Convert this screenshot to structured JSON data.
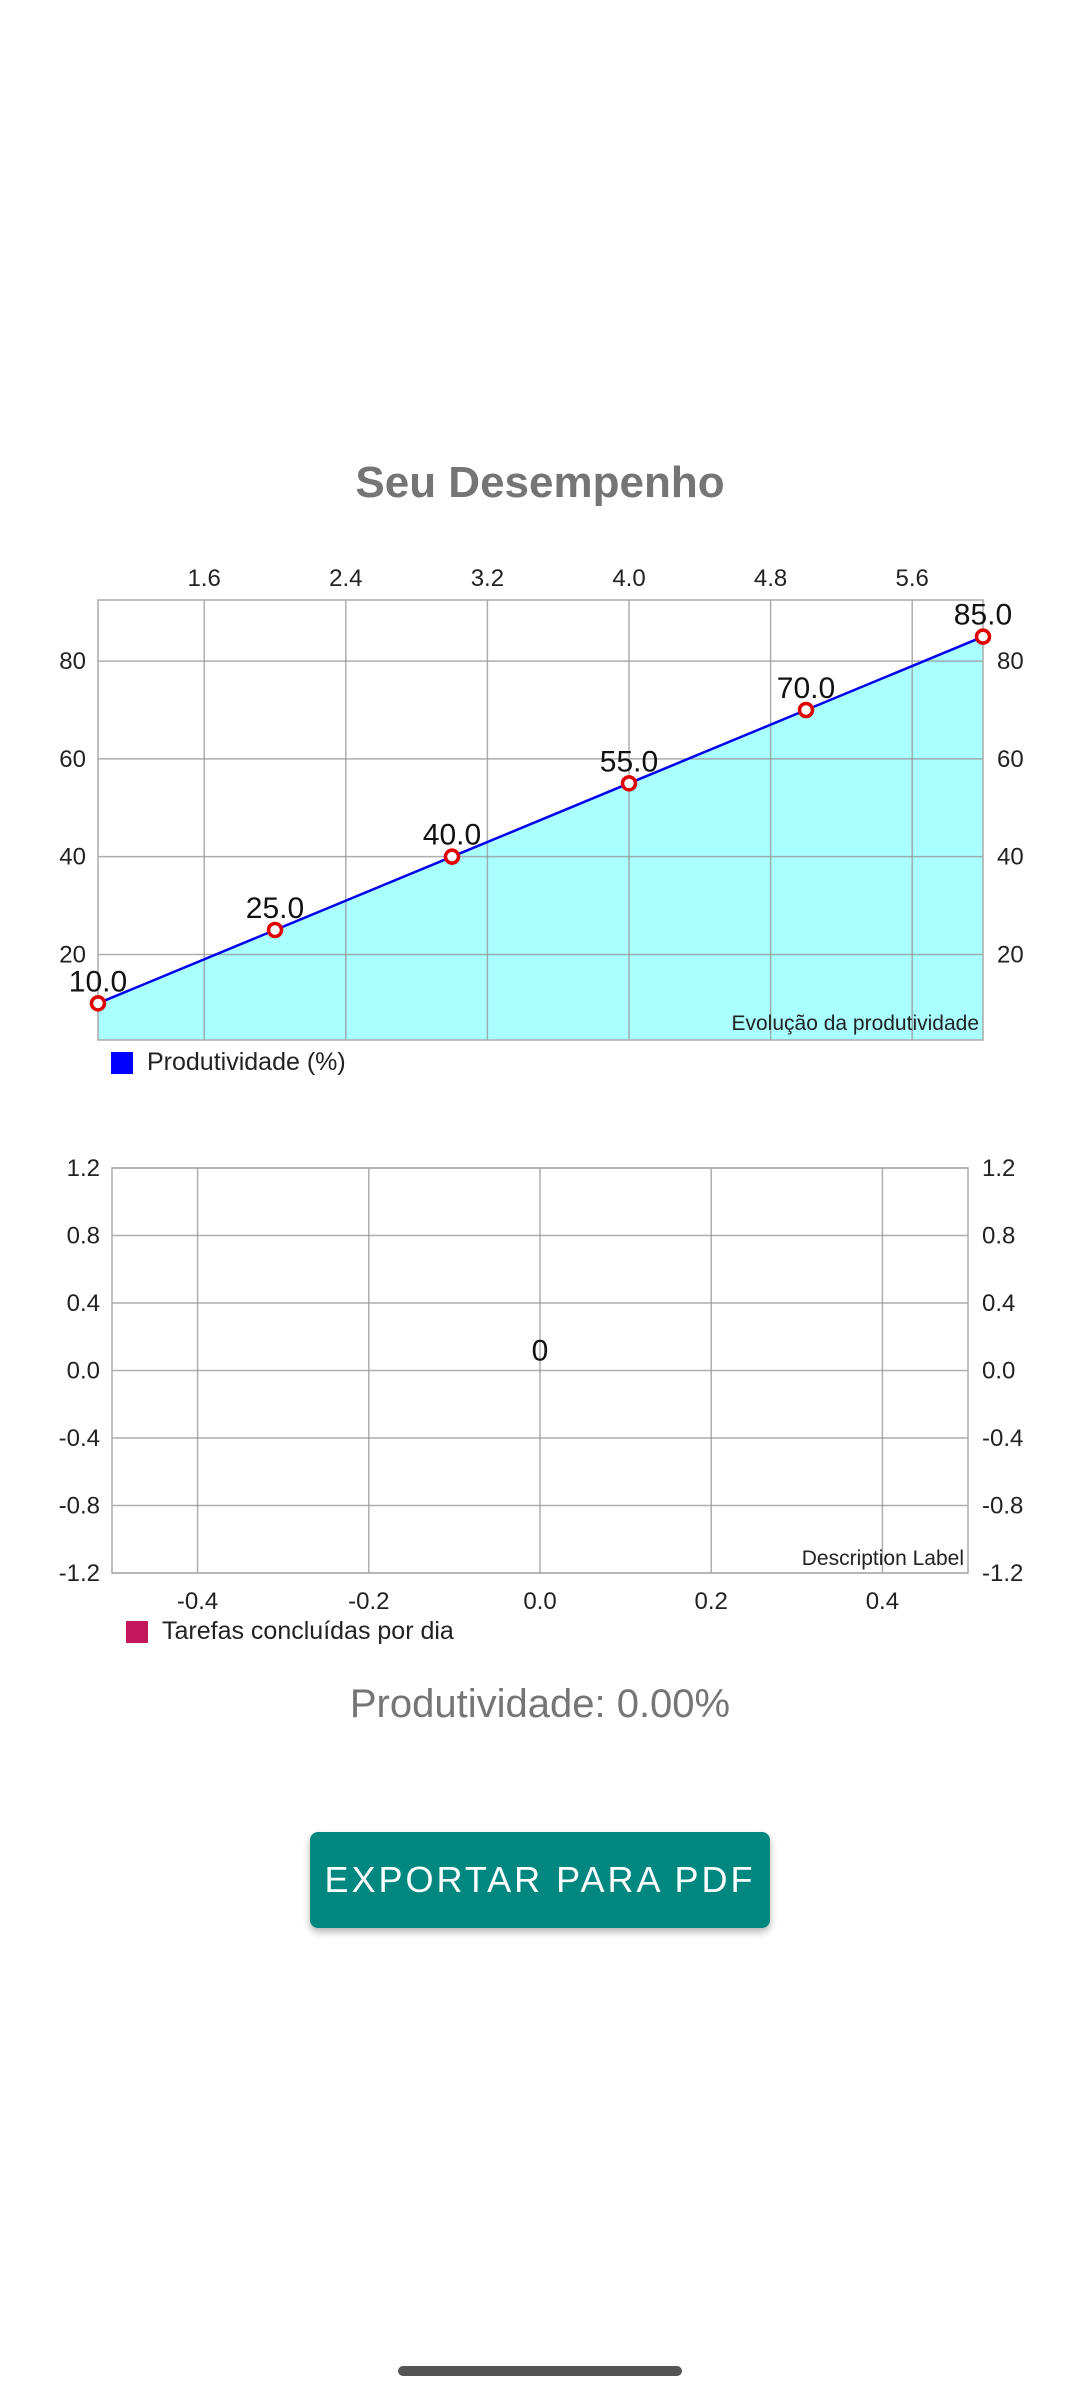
{
  "title": "Seu Desempenho",
  "chart_data": [
    {
      "type": "area",
      "description": "Evolução da produtividade",
      "x": [
        1,
        2,
        3,
        4,
        5,
        6
      ],
      "x_ticks": [
        "1.6",
        "2.4",
        "3.2",
        "4.0",
        "4.8",
        "5.6"
      ],
      "x_tick_values": [
        1.6,
        2.4,
        3.2,
        4.0,
        4.8,
        5.6
      ],
      "xlim": [
        1,
        6
      ],
      "y_ticks": [
        "20",
        "40",
        "60",
        "80"
      ],
      "y_tick_values": [
        20,
        40,
        60,
        80
      ],
      "ylim": [
        2.5,
        92.5
      ],
      "series": [
        {
          "name": "Produtividade (%)",
          "values": [
            10,
            25,
            40,
            55,
            70,
            85
          ],
          "labels": [
            "10.0",
            "25.0",
            "40.0",
            "55.0",
            "70.0",
            "85.0"
          ],
          "line_color": "#0000ee",
          "fill_color": "#aaffff",
          "point_color": "#e00000",
          "legend_color": "#0000ff"
        }
      ],
      "grid": true,
      "legend_position": "bottom-left"
    },
    {
      "type": "bar",
      "description": "Description Label",
      "x_ticks": [
        "-0.4",
        "-0.2",
        "0.0",
        "0.2",
        "0.4"
      ],
      "x_tick_values": [
        -0.4,
        -0.2,
        0.0,
        0.2,
        0.4
      ],
      "xlim": [
        -0.5,
        0.5
      ],
      "y_ticks": [
        "1.2",
        "0.8",
        "0.4",
        "0.0",
        "-0.4",
        "-0.8",
        "-1.2"
      ],
      "y_tick_values": [
        1.2,
        0.8,
        0.4,
        0.0,
        -0.4,
        -0.8,
        -1.2
      ],
      "ylim": [
        -1.2,
        1.2
      ],
      "series": [
        {
          "name": "Tarefas concluídas por dia",
          "values": [
            0
          ],
          "labels": [
            "0"
          ],
          "color": "#c2185b"
        }
      ],
      "grid": true,
      "legend_position": "bottom-left"
    }
  ],
  "productivity_text": "Produtividade: 0.00%",
  "export_button_label": "EXPORTAR PARA PDF"
}
